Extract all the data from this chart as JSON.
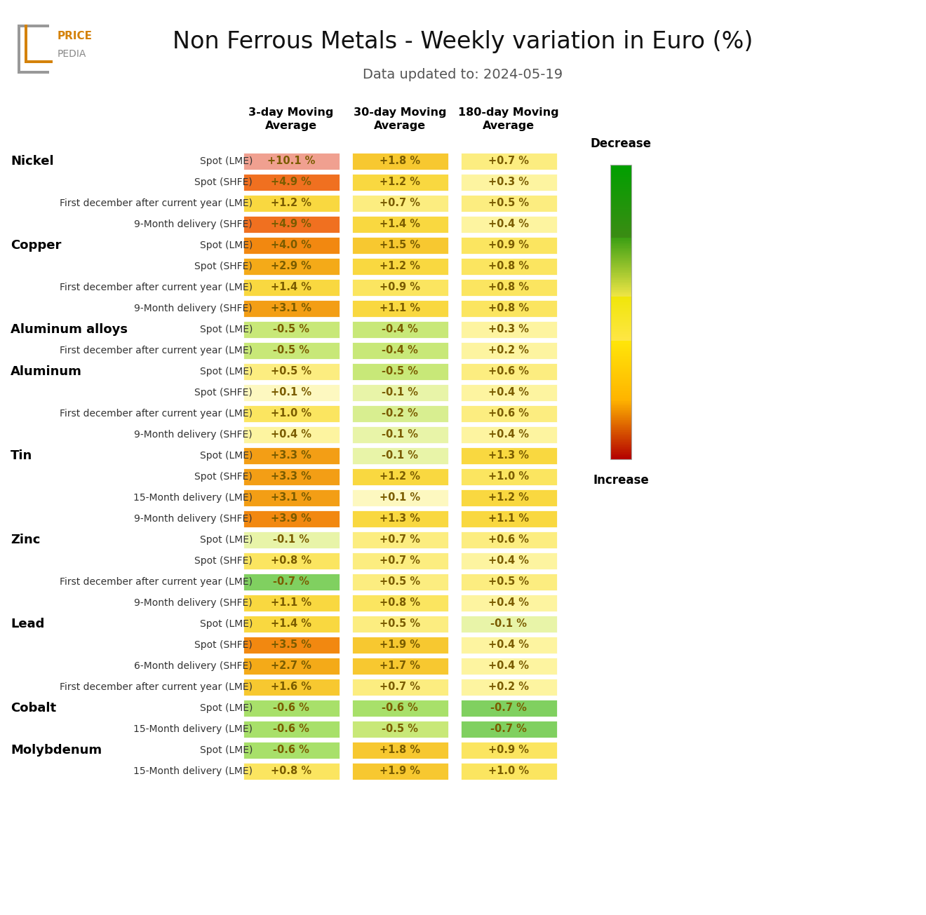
{
  "title": "Non Ferrous Metals - Weekly variation in Euro (%)",
  "subtitle": "Data updated to: 2024-05-19",
  "col_headers": [
    "3-day Moving\nAverage",
    "30-day Moving\nAverage",
    "180-day Moving\nAverage"
  ],
  "rows": [
    {
      "metal": "Nickel",
      "instrument": "Spot (LME)",
      "vals": [
        10.1,
        1.8,
        0.7
      ]
    },
    {
      "metal": "",
      "instrument": "Spot (SHFE)",
      "vals": [
        4.9,
        1.2,
        0.3
      ]
    },
    {
      "metal": "",
      "instrument": "First december after current year (LME)",
      "vals": [
        1.2,
        0.7,
        0.5
      ]
    },
    {
      "metal": "",
      "instrument": "9-Month delivery (SHFE)",
      "vals": [
        4.9,
        1.4,
        0.4
      ]
    },
    {
      "metal": "Copper",
      "instrument": "Spot (LME)",
      "vals": [
        4.0,
        1.5,
        0.9
      ]
    },
    {
      "metal": "",
      "instrument": "Spot (SHFE)",
      "vals": [
        2.9,
        1.2,
        0.8
      ]
    },
    {
      "metal": "",
      "instrument": "First december after current year (LME)",
      "vals": [
        1.4,
        0.9,
        0.8
      ]
    },
    {
      "metal": "",
      "instrument": "9-Month delivery (SHFE)",
      "vals": [
        3.1,
        1.1,
        0.8
      ]
    },
    {
      "metal": "Aluminum alloys",
      "instrument": "Spot (LME)",
      "vals": [
        -0.5,
        -0.4,
        0.3
      ]
    },
    {
      "metal": "",
      "instrument": "First december after current year (LME)",
      "vals": [
        -0.5,
        -0.4,
        0.2
      ]
    },
    {
      "metal": "Aluminum",
      "instrument": "Spot (LME)",
      "vals": [
        0.5,
        -0.5,
        0.6
      ]
    },
    {
      "metal": "",
      "instrument": "Spot (SHFE)",
      "vals": [
        0.1,
        -0.1,
        0.4
      ]
    },
    {
      "metal": "",
      "instrument": "First december after current year (LME)",
      "vals": [
        1.0,
        -0.2,
        0.6
      ]
    },
    {
      "metal": "",
      "instrument": "9-Month delivery (SHFE)",
      "vals": [
        0.4,
        -0.1,
        0.4
      ]
    },
    {
      "metal": "Tin",
      "instrument": "Spot (LME)",
      "vals": [
        3.3,
        -0.1,
        1.3
      ]
    },
    {
      "metal": "",
      "instrument": "Spot (SHFE)",
      "vals": [
        3.3,
        1.2,
        1.0
      ]
    },
    {
      "metal": "",
      "instrument": "15-Month delivery (LME)",
      "vals": [
        3.1,
        0.1,
        1.2
      ]
    },
    {
      "metal": "",
      "instrument": "9-Month delivery (SHFE)",
      "vals": [
        3.9,
        1.3,
        1.1
      ]
    },
    {
      "metal": "Zinc",
      "instrument": "Spot (LME)",
      "vals": [
        -0.1,
        0.7,
        0.6
      ]
    },
    {
      "metal": "",
      "instrument": "Spot (SHFE)",
      "vals": [
        0.8,
        0.7,
        0.4
      ]
    },
    {
      "metal": "",
      "instrument": "First december after current year (LME)",
      "vals": [
        -0.7,
        0.5,
        0.5
      ]
    },
    {
      "metal": "",
      "instrument": "9-Month delivery (SHFE)",
      "vals": [
        1.1,
        0.8,
        0.4
      ]
    },
    {
      "metal": "Lead",
      "instrument": "Spot (LME)",
      "vals": [
        1.4,
        0.5,
        -0.1
      ]
    },
    {
      "metal": "",
      "instrument": "Spot (SHFE)",
      "vals": [
        3.5,
        1.9,
        0.4
      ]
    },
    {
      "metal": "",
      "instrument": "6-Month delivery (SHFE)",
      "vals": [
        2.7,
        1.7,
        0.4
      ]
    },
    {
      "metal": "",
      "instrument": "First december after current year (LME)",
      "vals": [
        1.6,
        0.7,
        0.2
      ]
    },
    {
      "metal": "Cobalt",
      "instrument": "Spot (LME)",
      "vals": [
        -0.6,
        -0.6,
        -0.7
      ]
    },
    {
      "metal": "",
      "instrument": "15-Month delivery (LME)",
      "vals": [
        -0.6,
        -0.5,
        -0.7
      ]
    },
    {
      "metal": "Molybdenum",
      "instrument": "Spot (LME)",
      "vals": [
        -0.6,
        1.8,
        0.9
      ]
    },
    {
      "metal": "",
      "instrument": "15-Month delivery (LME)",
      "vals": [
        0.8,
        1.9,
        1.0
      ]
    }
  ],
  "metal_label_color": "#000000",
  "instrument_color": "#333333",
  "value_text_color": "#7a5c00",
  "background_color": "#ffffff",
  "colorbar_label_decrease": "Decrease",
  "colorbar_label_increase": "Increase"
}
